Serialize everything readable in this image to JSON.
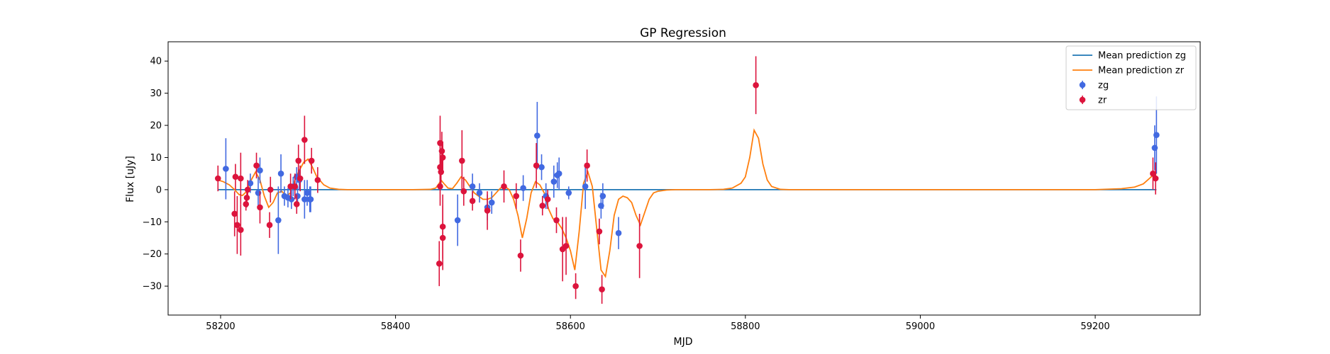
{
  "chart_data": {
    "type": "scatter",
    "title": "GP Regression",
    "xlabel": "MJD",
    "ylabel": "Flux [uJy]",
    "xlim": [
      58140,
      59320
    ],
    "ylim": [
      -39,
      46
    ],
    "xticks": [
      58200,
      58400,
      58600,
      58800,
      59000,
      59200
    ],
    "yticks": [
      -30,
      -20,
      -10,
      0,
      10,
      20,
      30,
      40
    ],
    "grid": false,
    "legend_position": "top-right",
    "series": [
      {
        "name": "Mean prediction zg",
        "kind": "line",
        "color": "#1f77b4",
        "x": [
          58197,
          59270
        ],
        "y": [
          0,
          0
        ]
      },
      {
        "name": "Mean prediction zr",
        "kind": "line",
        "color": "#ff7f0e",
        "x": [
          58197,
          58203,
          58210,
          58216,
          58221,
          58225,
          58230,
          58235,
          58240,
          58245,
          58250,
          58255,
          58260,
          58265,
          58270,
          58275,
          58280,
          58285,
          58290,
          58295,
          58300,
          58305,
          58310,
          58318,
          58325,
          58335,
          58345,
          58360,
          58380,
          58400,
          58420,
          58440,
          58446,
          58450,
          58452,
          58455,
          58460,
          58465,
          58470,
          58475,
          58480,
          58485,
          58490,
          58495,
          58500,
          58505,
          58510,
          58515,
          58520,
          58525,
          58530,
          58535,
          58540,
          58545,
          58550,
          58555,
          58560,
          58565,
          58570,
          58575,
          58580,
          58585,
          58590,
          58595,
          58600,
          58605,
          58610,
          58615,
          58620,
          58625,
          58630,
          58635,
          58640,
          58645,
          58650,
          58655,
          58660,
          58665,
          58670,
          58675,
          58680,
          58685,
          58690,
          58695,
          58700,
          58710,
          58720,
          58740,
          58760,
          58775,
          58785,
          58795,
          58800,
          58805,
          58810,
          58815,
          58820,
          58825,
          58830,
          58840,
          58850,
          58870,
          58900,
          59000,
          59100,
          59200,
          59230,
          59245,
          59255,
          59262,
          59266,
          59270
        ],
        "y": [
          3,
          2.5,
          1.5,
          0,
          -1.5,
          -1.8,
          -0.5,
          3,
          5.5,
          3,
          -2,
          -5.5,
          -4,
          -1,
          -0.5,
          -2,
          -1,
          3,
          6,
          8.5,
          9.5,
          7,
          4,
          1.5,
          0.5,
          0.1,
          0,
          0,
          0,
          0,
          0,
          0.1,
          0.5,
          2,
          3,
          2,
          0.5,
          0.3,
          2,
          4,
          3,
          1,
          -1,
          -2,
          -3,
          -3,
          -2.5,
          -1,
          0.5,
          1,
          0,
          -3,
          -8,
          -15,
          -9,
          -1,
          2.5,
          1.5,
          -1,
          -6,
          -9,
          -10,
          -12,
          -15,
          -19,
          -25,
          -13,
          2,
          5.5,
          1,
          -12,
          -25,
          -27,
          -19,
          -8,
          -3,
          -2,
          -2.5,
          -4,
          -8,
          -11,
          -7,
          -3,
          -1,
          -0.5,
          -0.1,
          0,
          0,
          0,
          0.1,
          0.5,
          2,
          4,
          10,
          18.5,
          16,
          8,
          3,
          1,
          0.1,
          0,
          0,
          0,
          0,
          0,
          0,
          0.3,
          0.8,
          1.8,
          3.5,
          4.5,
          5
        ]
      },
      {
        "name": "zg",
        "kind": "errorbar",
        "color": "#4169e1",
        "points": [
          [
            58206,
            6.5,
            9.5
          ],
          [
            58234,
            2,
            3
          ],
          [
            58243,
            -1,
            5
          ],
          [
            58245,
            6,
            4
          ],
          [
            58266,
            -9.5,
            10.5
          ],
          [
            58269,
            5,
            6
          ],
          [
            58273,
            -2,
            3
          ],
          [
            58277,
            -2.5,
            3
          ],
          [
            58281,
            -3,
            3
          ],
          [
            58283,
            1,
            3
          ],
          [
            58287,
            4,
            3
          ],
          [
            58288,
            -2,
            3
          ],
          [
            58290,
            3,
            3
          ],
          [
            58296,
            -3,
            6
          ],
          [
            58299,
            -1,
            4
          ],
          [
            58302,
            -3,
            4
          ],
          [
            58303,
            -3,
            4
          ],
          [
            58471,
            -9.5,
            8
          ],
          [
            58488,
            1,
            4
          ],
          [
            58496,
            -1,
            3
          ],
          [
            58505,
            -5.5,
            4
          ],
          [
            58510,
            -4,
            3.5
          ],
          [
            58546,
            0.5,
            4
          ],
          [
            58562,
            16.8,
            10.5
          ],
          [
            58567,
            7,
            4
          ],
          [
            58572,
            -2,
            4
          ],
          [
            58581,
            2.5,
            5
          ],
          [
            58585,
            4.5,
            4
          ],
          [
            58587,
            5,
            5
          ],
          [
            58598,
            -1,
            2
          ],
          [
            58617,
            1,
            7
          ],
          [
            58635,
            -5,
            4
          ],
          [
            58637,
            -2,
            4
          ],
          [
            58655,
            -13.5,
            5
          ],
          [
            59268,
            13,
            7
          ],
          [
            59270,
            17,
            12
          ]
        ]
      },
      {
        "name": "zr",
        "kind": "errorbar",
        "color": "#dc143c",
        "points": [
          [
            58197,
            3.5,
            4
          ],
          [
            58216,
            -7.5,
            7
          ],
          [
            58217,
            4,
            4
          ],
          [
            58219,
            -11,
            9
          ],
          [
            58223,
            -12.5,
            8
          ],
          [
            58223,
            3.5,
            8
          ],
          [
            58229,
            -4.5,
            2
          ],
          [
            58230,
            -2.5,
            3
          ],
          [
            58231,
            0,
            3
          ],
          [
            58241,
            7.5,
            4
          ],
          [
            58245,
            -5.5,
            5
          ],
          [
            58256,
            -11,
            4
          ],
          [
            58257,
            0,
            4
          ],
          [
            58280,
            1,
            4
          ],
          [
            58285,
            1,
            4
          ],
          [
            58287,
            -4.5,
            3
          ],
          [
            58289,
            9,
            5
          ],
          [
            58291,
            3.5,
            4
          ],
          [
            58296,
            15.5,
            7.5
          ],
          [
            58304,
            9,
            4
          ],
          [
            58311,
            3,
            4
          ],
          [
            58450,
            -23,
            7
          ],
          [
            58451,
            1,
            6
          ],
          [
            58451,
            14.5,
            8.5
          ],
          [
            58451,
            7,
            7
          ],
          [
            58452,
            5.5,
            5
          ],
          [
            58453,
            12,
            6
          ],
          [
            58454,
            10,
            5
          ],
          [
            58454,
            -11.5,
            10
          ],
          [
            58454,
            -15,
            10
          ],
          [
            58476,
            9,
            9.5
          ],
          [
            58478,
            -0.5,
            4.5
          ],
          [
            58488,
            -3.5,
            3
          ],
          [
            58505,
            -6.5,
            6
          ],
          [
            58524,
            1,
            5
          ],
          [
            58538,
            -2,
            4
          ],
          [
            58543,
            -20.5,
            5
          ],
          [
            58561,
            7.5,
            7
          ],
          [
            58568,
            -5,
            3
          ],
          [
            58574,
            -3,
            3
          ],
          [
            58584,
            -9.5,
            4
          ],
          [
            58591,
            -18.5,
            10
          ],
          [
            58595,
            -17.5,
            9
          ],
          [
            58606,
            -30,
            4
          ],
          [
            58619,
            7.5,
            5
          ],
          [
            58633,
            -13,
            4
          ],
          [
            58636,
            -31,
            4.5
          ],
          [
            58679,
            -17.5,
            10
          ],
          [
            58812,
            32.5,
            9
          ],
          [
            59266,
            5,
            5
          ],
          [
            59269,
            3.5,
            5
          ]
        ]
      }
    ]
  }
}
